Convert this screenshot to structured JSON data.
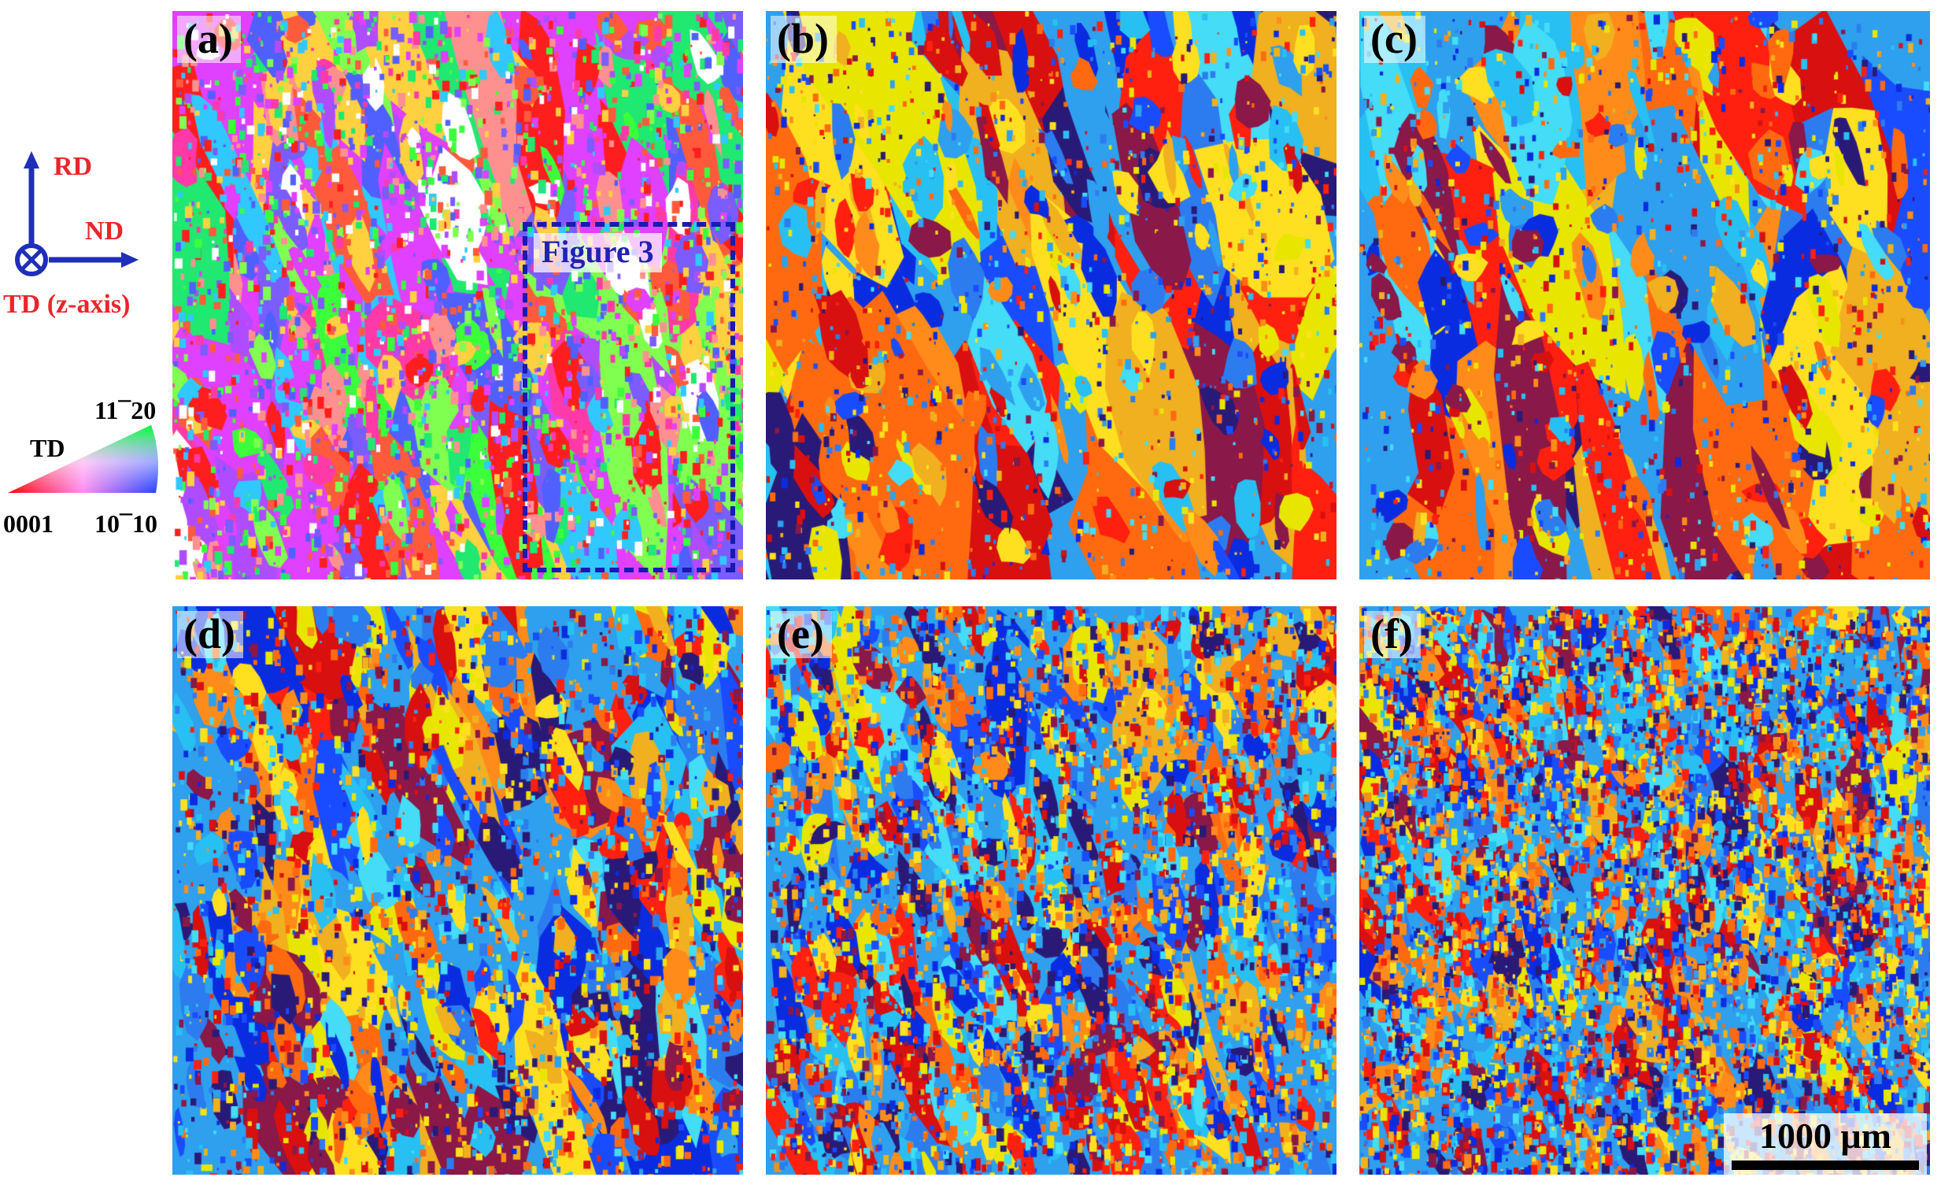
{
  "legend": {
    "axes": {
      "rd": "RD",
      "nd": "ND",
      "td": "TD (z-axis)"
    },
    "ipf": {
      "direction": "TD",
      "top_pole": "11¯20",
      "left_pole": "0001",
      "right_pole": "10¯10"
    },
    "colors": {
      "axis_arrow": "#1f2fb8",
      "axis_label": "#e8262b"
    }
  },
  "panels": [
    {
      "label": "(a)",
      "seed": 11,
      "style": "ipf_full"
    },
    {
      "label": "(b)",
      "seed": 23,
      "style": "coarse"
    },
    {
      "label": "(c)",
      "seed": 37,
      "style": "coarse"
    },
    {
      "label": "(d)",
      "seed": 41,
      "style": "medium"
    },
    {
      "label": "(e)",
      "seed": 53,
      "style": "fine"
    },
    {
      "label": "(f)",
      "seed": 67,
      "style": "veryfine"
    }
  ],
  "roi": {
    "label": "Figure 3",
    "color": "#1a1ab0"
  },
  "scalebar": {
    "label": "1000 μm"
  },
  "palettes": {
    "ipf_full": [
      "#ff1e1e",
      "#ff5a3c",
      "#ff3aa8",
      "#e040ff",
      "#b04cff",
      "#7a5cff",
      "#3cff3c",
      "#80ff50",
      "#20e870",
      "#ffffff",
      "#ff9090",
      "#5060ff",
      "#30c8ff",
      "#ffd040"
    ],
    "orientation": [
      "#0a2ce0",
      "#1a4cff",
      "#2c7cf0",
      "#2ea0ee",
      "#28c0f2",
      "#44dcf6",
      "#ffe020",
      "#e8e600",
      "#f0b020",
      "#ff8c1a",
      "#ff6a10",
      "#ff2010",
      "#d81010",
      "#8a1848",
      "#2a1a78"
    ]
  }
}
